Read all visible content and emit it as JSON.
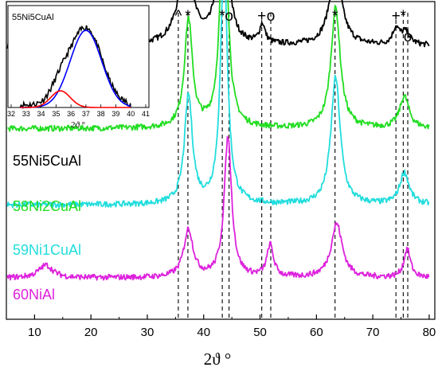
{
  "chart_data": [
    {
      "type": "line",
      "title": "",
      "xlabel": "2ϑ °",
      "ylabel": "",
      "xlim": [
        5,
        81
      ],
      "x_ticks": [
        10,
        20,
        30,
        40,
        50,
        60,
        70,
        80
      ],
      "grid": false,
      "legend": "inline labels left",
      "phase_markers": [
        {
          "symbol": "^",
          "x": 35.5
        },
        {
          "symbol": "*",
          "x": 37.2
        },
        {
          "symbol": "*",
          "x": 43.3
        },
        {
          "symbol": "o",
          "x": 44.5
        },
        {
          "symbol": "+",
          "x": 50.3
        },
        {
          "symbol": "o",
          "x": 51.9
        },
        {
          "symbol": "*",
          "x": 63.3
        },
        {
          "symbol": "+",
          "x": 74.1
        },
        {
          "symbol": "*",
          "x": 75.4
        },
        {
          "symbol": "o",
          "x": 76.2
        }
      ],
      "series": [
        {
          "name": "55Ni5CuAl",
          "color": "#000000",
          "baseline": 0.86,
          "peaks": [
            [
              36.8,
              0.23,
              1.7
            ],
            [
              43.4,
              0.72,
              0.75
            ],
            [
              50.4,
              0.06,
              0.6
            ],
            [
              63.4,
              0.24,
              1.3
            ],
            [
              74.1,
              0.05,
              0.7
            ],
            [
              75.8,
              0.04,
              1.0
            ]
          ]
        },
        {
          "name": "58Ni2CuAl",
          "color": "#22dd22",
          "baseline": 0.6,
          "peaks": [
            [
              37.3,
              0.34,
              0.85
            ],
            [
              43.6,
              0.78,
              0.75
            ],
            [
              63.4,
              0.38,
              1.0
            ],
            [
              75.6,
              0.1,
              1.0
            ]
          ]
        },
        {
          "name": "59Ni1CuAl",
          "color": "#22dddd",
          "baseline": 0.36,
          "peaks": [
            [
              37.3,
              0.34,
              0.85
            ],
            [
              43.6,
              0.76,
              0.75
            ],
            [
              63.4,
              0.4,
              1.0
            ],
            [
              75.6,
              0.1,
              1.0
            ]
          ]
        },
        {
          "name": "60NiAl",
          "color": "#dd22dd",
          "baseline": 0.13,
          "peaks": [
            [
              12.0,
              0.04,
              1.5
            ],
            [
              37.3,
              0.15,
              1.0
            ],
            [
              44.3,
              0.44,
              0.8
            ],
            [
              51.8,
              0.1,
              0.7
            ],
            [
              63.6,
              0.17,
              1.2
            ],
            [
              76.1,
              0.09,
              0.7
            ]
          ]
        }
      ]
    },
    {
      "type": "line",
      "title": "55Ni5CuAl",
      "xlabel": "2ϑ °",
      "ylabel": "",
      "xlim": [
        32,
        41
      ],
      "x_ticks": [
        32,
        33,
        34,
        35,
        36,
        37,
        38,
        39,
        40,
        41
      ],
      "ylim": [
        0,
        1.1
      ],
      "series": [
        {
          "name": "",
          "color": "#000000",
          "kind": "data"
        },
        {
          "name": "",
          "color": "#0000ff",
          "kind": "fit",
          "center": 37.0,
          "height": 0.88,
          "width": 1.05
        },
        {
          "name": "",
          "color": "#ff0000",
          "kind": "fit",
          "center": 35.3,
          "height": 0.19,
          "width": 0.65
        }
      ]
    }
  ]
}
